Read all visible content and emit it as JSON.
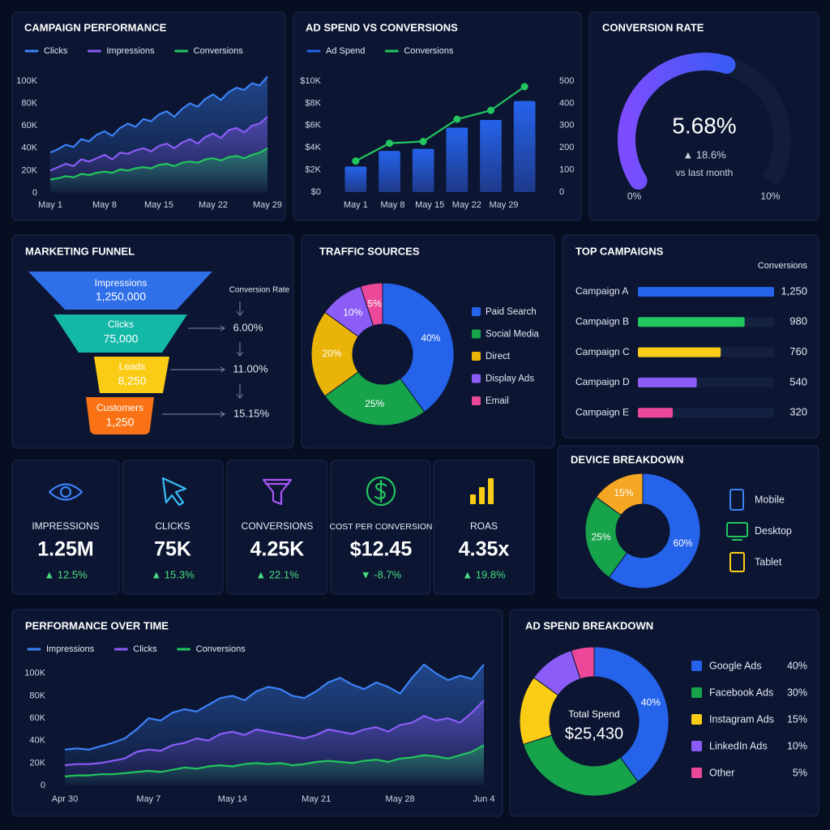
{
  "chart_data": [
    {
      "type": "line",
      "title": "CAMPAIGN PERFORMANCE",
      "categories": [
        "May 1",
        null,
        null,
        null,
        null,
        null,
        null,
        "May 8",
        null,
        null,
        null,
        null,
        null,
        null,
        "May 15",
        null,
        null,
        null,
        null,
        null,
        null,
        "May 22",
        null,
        null,
        null,
        null,
        null,
        null,
        "May 29"
      ],
      "series": [
        {
          "name": "Clicks",
          "color": "#3b82f6",
          "values": [
            36000,
            39000,
            43000,
            41000,
            48000,
            46000,
            52000,
            55000,
            51000,
            58000,
            62000,
            59000,
            66000,
            64000,
            70000,
            73000,
            68000,
            75000,
            80000,
            77000,
            84000,
            88000,
            83000,
            90000,
            94000,
            92000,
            98000,
            96000,
            104000
          ]
        },
        {
          "name": "Impressions",
          "color": "#8b5cf6",
          "values": [
            20000,
            23000,
            26000,
            24000,
            30000,
            28000,
            31000,
            34000,
            30000,
            36000,
            35000,
            38000,
            40000,
            37000,
            42000,
            44000,
            40000,
            45000,
            48000,
            44000,
            50000,
            53000,
            49000,
            56000,
            58000,
            54000,
            60000,
            62000,
            68000
          ]
        },
        {
          "name": "Conversions",
          "color": "#22c55e",
          "values": [
            12000,
            13000,
            15000,
            14000,
            17000,
            16000,
            18000,
            19000,
            18000,
            21000,
            20000,
            22000,
            23000,
            22000,
            25000,
            26000,
            24000,
            27000,
            28000,
            27000,
            30000,
            31000,
            29000,
            32000,
            33000,
            31000,
            34000,
            36000,
            40000
          ]
        }
      ],
      "ylim": [
        0,
        105000
      ],
      "yticks": [
        0,
        {
          "value": 20000,
          "label": "20K"
        },
        {
          "value": 40000,
          "label": "40K"
        },
        {
          "value": 60000,
          "label": "60K"
        },
        {
          "value": 80000,
          "label": "80K"
        },
        {
          "value": 100000,
          "label": "100K"
        }
      ],
      "area": true
    },
    {
      "type": "bar",
      "title": "AD SPEND VS CONVERSIONS",
      "categories": [
        "May 1",
        "May 8",
        "May 15",
        "May 22",
        "May 29",
        null
      ],
      "series": [
        {
          "name": "Ad Spend",
          "color": "#2563eb",
          "values": [
            2300,
            3700,
            3900,
            5800,
            6500,
            8200
          ]
        },
        {
          "name": "Conversions",
          "color": "#22c55e",
          "type": "line",
          "axis": "y2",
          "values": [
            140,
            220,
            228,
            328,
            368,
            475
          ]
        }
      ],
      "ylim": [
        0,
        10000
      ],
      "yticks": [
        {
          "value": 0,
          "label": "$0"
        },
        {
          "value": 2000,
          "label": "$2K"
        },
        {
          "value": 4000,
          "label": "$4K"
        },
        {
          "value": 6000,
          "label": "$6K"
        },
        {
          "value": 8000,
          "label": "$8K"
        },
        {
          "value": 10000,
          "label": "$10K"
        }
      ],
      "y2lim": [
        0,
        500
      ],
      "y2ticks": [
        0,
        100,
        200,
        300,
        400,
        500
      ]
    },
    {
      "type": "gauge",
      "title": "CONVERSION RATE",
      "value": 5.68,
      "value_label": "5.68%",
      "change": "▲ 18.6%",
      "note": "vs last month",
      "ylim": [
        0,
        10
      ],
      "yticks": [
        {
          "value": 0,
          "label": "0%"
        },
        {
          "value": 10,
          "label": "10%"
        }
      ]
    },
    {
      "type": "pie",
      "title": "TRAFFIC SOURCES",
      "donut": true,
      "categories": [
        "Paid Search",
        "Social Media",
        "Direct",
        "Display Ads",
        "Email"
      ],
      "values": [
        40,
        25,
        20,
        10,
        5
      ],
      "value_labels": [
        "40%",
        "25%",
        "20%",
        "10%",
        "5%"
      ],
      "colors": [
        "#2563eb",
        "#16a34a",
        "#eab308",
        "#8b5cf6",
        "#ec4899"
      ]
    },
    {
      "type": "bar",
      "orientation": "horizontal",
      "title": "TOP CAMPAIGNS",
      "xlabel": "Conversions",
      "categories": [
        "Campaign A",
        "Campaign B",
        "Campaign C",
        "Campaign D",
        "Campaign E"
      ],
      "values": [
        1250,
        980,
        760,
        540,
        320
      ],
      "value_labels": [
        "1,250",
        "980",
        "760",
        "540",
        "320"
      ],
      "colors": [
        "#2563eb",
        "#22c55e",
        "#facc15",
        "#8b5cf6",
        "#ec4899"
      ],
      "xlim": [
        0,
        1250
      ]
    },
    {
      "type": "pie",
      "title": "DEVICE BREAKDOWN",
      "donut": true,
      "categories": [
        "Mobile",
        "Desktop",
        "Tablet"
      ],
      "values": [
        60,
        25,
        15
      ],
      "value_labels": [
        "60%",
        "25%",
        "15%"
      ],
      "colors": [
        "#2563eb",
        "#16a34a",
        "#f5a623"
      ]
    },
    {
      "type": "line",
      "title": "PERFORMANCE OVER TIME",
      "categories": [
        "Apr 30",
        null,
        null,
        null,
        null,
        null,
        null,
        "May 7",
        null,
        null,
        null,
        null,
        null,
        null,
        "May 14",
        null,
        null,
        null,
        null,
        null,
        null,
        "May 21",
        null,
        null,
        null,
        null,
        null,
        null,
        "May 28",
        null,
        null,
        null,
        null,
        null,
        null,
        "Jun 4"
      ],
      "series": [
        {
          "name": "Impressions",
          "color": "#3b82f6",
          "values": [
            32000,
            33000,
            32000,
            35000,
            38000,
            42000,
            50000,
            60000,
            58000,
            65000,
            68000,
            66000,
            72000,
            78000,
            80000,
            76000,
            84000,
            88000,
            86000,
            80000,
            78000,
            84000,
            92000,
            96000,
            90000,
            86000,
            92000,
            88000,
            82000,
            96000,
            108000,
            100000,
            94000,
            98000,
            95000,
            108000
          ]
        },
        {
          "name": "Clicks",
          "color": "#8b5cf6",
          "values": [
            18000,
            19000,
            19000,
            20000,
            22000,
            24000,
            30000,
            32000,
            31000,
            36000,
            38000,
            42000,
            40000,
            46000,
            48000,
            45000,
            50000,
            48000,
            46000,
            44000,
            42000,
            45000,
            50000,
            48000,
            46000,
            50000,
            52000,
            48000,
            54000,
            56000,
            62000,
            58000,
            60000,
            56000,
            65000,
            76000
          ]
        },
        {
          "name": "Conversions",
          "color": "#22c55e",
          "values": [
            8000,
            9000,
            9000,
            10000,
            10000,
            11000,
            12000,
            13000,
            12000,
            14000,
            16000,
            15000,
            17000,
            18000,
            17000,
            19000,
            20000,
            19000,
            20000,
            18000,
            19000,
            21000,
            22000,
            21000,
            20000,
            22000,
            23000,
            21000,
            24000,
            25000,
            27000,
            26000,
            24000,
            27000,
            30000,
            36000
          ]
        }
      ],
      "ylim": [
        0,
        110000
      ],
      "yticks": [
        0,
        {
          "value": 20000,
          "label": "20K"
        },
        {
          "value": 40000,
          "label": "40K"
        },
        {
          "value": 60000,
          "label": "60K"
        },
        {
          "value": 80000,
          "label": "80K"
        },
        {
          "value": 100000,
          "label": "100K"
        }
      ],
      "area": true
    },
    {
      "type": "pie",
      "title": "AD SPEND BREAKDOWN",
      "donut": true,
      "center_label": "Total Spend",
      "center_value": "$25,430",
      "categories": [
        "Google Ads",
        "Facebook Ads",
        "Instagram Ads",
        "LinkedIn Ads",
        "Other"
      ],
      "values": [
        40,
        30,
        15,
        10,
        5
      ],
      "value_labels": [
        "40%",
        "30%",
        "15%",
        "10%",
        "5%"
      ],
      "colors": [
        "#2563eb",
        "#16a34a",
        "#facc15",
        "#8b5cf6",
        "#ec4899"
      ]
    }
  ],
  "funnel": {
    "title": "MARKETING FUNNEL",
    "rate_label": "Conversion Rate",
    "stages": [
      {
        "name": "Impressions",
        "value": "1,250,000"
      },
      {
        "name": "Clicks",
        "value": "75,000"
      },
      {
        "name": "Leads",
        "value": "8,250"
      },
      {
        "name": "Customers",
        "value": "1,250"
      }
    ],
    "rates": [
      "6.00%",
      "11.00%",
      "15.15%"
    ]
  },
  "kpis": [
    {
      "label": "IMPRESSIONS",
      "value": "1.25M",
      "change": "▲ 12.5%"
    },
    {
      "label": "CLICKS",
      "value": "75K",
      "change": "▲ 15.3%"
    },
    {
      "label": "CONVERSIONS",
      "value": "4.25K",
      "change": "▲ 22.1%"
    },
    {
      "label": "COST PER CONVERSION",
      "value": "$12.45",
      "change": "▼ -8.7%"
    },
    {
      "label": "ROAS",
      "value": "4.35x",
      "change": "▲ 19.8%"
    }
  ]
}
